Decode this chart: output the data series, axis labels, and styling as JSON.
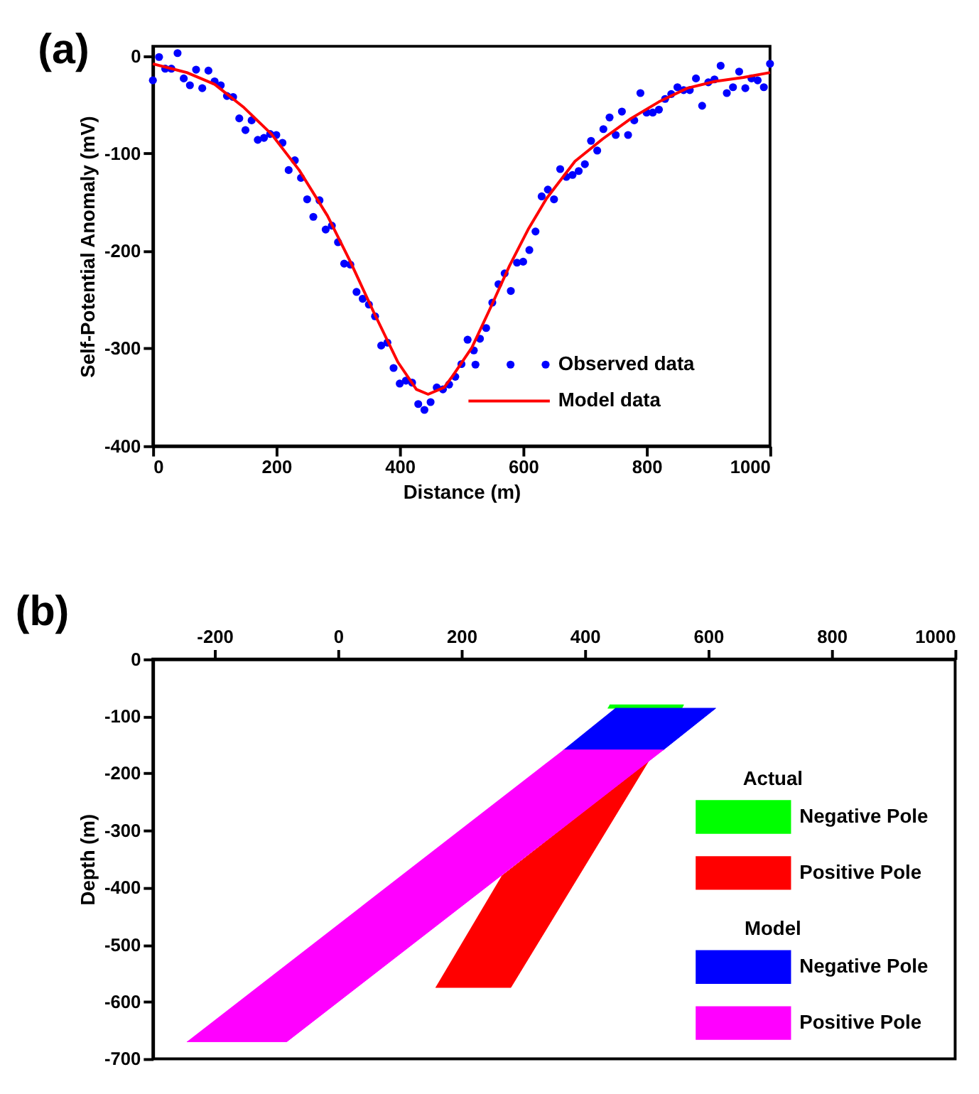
{
  "chart_data": [
    {
      "type": "scatter",
      "title": "(a)",
      "xlabel": "Distance (m)",
      "ylabel": "Self-Potential Anomaly (mV)",
      "xlim": [
        0,
        1000
      ],
      "xticks": [
        0,
        200,
        400,
        600,
        800,
        1000
      ],
      "ylim": [
        -400,
        10
      ],
      "yticks": [
        -400,
        -300,
        -200,
        -100,
        0
      ],
      "legend": "bottom right",
      "series": [
        {
          "name": "Observed data",
          "type": "scatter",
          "marker": "circle",
          "color": "#0000ff",
          "x": [
            0,
            10,
            20,
            30,
            40,
            50,
            60,
            70,
            80,
            90,
            100,
            110,
            120,
            130,
            140,
            150,
            160,
            170,
            180,
            190,
            200,
            210,
            220,
            230,
            240,
            250,
            260,
            270,
            280,
            290,
            300,
            310,
            320,
            330,
            340,
            350,
            360,
            370,
            380,
            390,
            400,
            410,
            420,
            430,
            440,
            450,
            460,
            470,
            480,
            490,
            500,
            510,
            520,
            530,
            540,
            550,
            560,
            570,
            580,
            590,
            600,
            610,
            620,
            630,
            640,
            650,
            660,
            670,
            680,
            690,
            700,
            710,
            720,
            730,
            740,
            750,
            760,
            770,
            780,
            790,
            800,
            810,
            820,
            830,
            840,
            850,
            860,
            870,
            880,
            890,
            900,
            910,
            920,
            930,
            940,
            950,
            960,
            970,
            980,
            990,
            1000
          ],
          "values": [
            -25,
            -1,
            -13,
            -13,
            3,
            -23,
            -30,
            -14,
            -33,
            -15,
            -26,
            -30,
            -41,
            -42,
            -64,
            -76,
            -66,
            -86,
            -84,
            -80,
            -81,
            -89,
            -117,
            -107,
            -125,
            -147,
            -165,
            -148,
            -178,
            -174,
            -191,
            -213,
            -214,
            -242,
            -249,
            -255,
            -267,
            -297,
            -294,
            -320,
            -336,
            -333,
            -335,
            -357,
            -363,
            -355,
            -340,
            -342,
            -337,
            -329,
            -316,
            -291,
            -302,
            -290,
            -279,
            -253,
            -234,
            -223,
            -241,
            -212,
            -211,
            -199,
            -180,
            -144,
            -137,
            -147,
            -116,
            -124,
            -122,
            -118,
            -111,
            -87,
            -97,
            -75,
            -63,
            -81,
            -57,
            -81,
            -66,
            -38,
            -58,
            -58,
            -55,
            -44,
            -39,
            -32,
            -35,
            -35,
            -23,
            -51,
            -27,
            -24,
            -10,
            -38,
            -32,
            -16,
            -33,
            -23,
            -25,
            -32,
            -8
          ]
        },
        {
          "name": "Model data",
          "type": "line",
          "marker": "none",
          "line_style": "solid",
          "color": "#ff0000",
          "x": [
            0,
            55,
            100,
            146,
            192,
            237,
            283,
            320,
            358,
            397,
            427,
            446,
            472,
            487,
            517,
            548,
            578,
            608,
            638,
            684,
            729,
            775,
            820,
            866,
            911,
            957,
            1000
          ],
          "values": [
            -8,
            -17,
            -29,
            -52,
            -80,
            -117,
            -164,
            -211,
            -263,
            -314,
            -342,
            -347,
            -340,
            -327,
            -299,
            -257,
            -215,
            -178,
            -146,
            -108,
            -85,
            -64,
            -47,
            -33,
            -26,
            -22,
            -17
          ]
        }
      ]
    },
    {
      "type": "area",
      "title": "(b)",
      "ylabel": "Depth (m)",
      "xlim": [
        -300,
        1000
      ],
      "xticks": [
        -200,
        0,
        200,
        400,
        600,
        800,
        1000
      ],
      "ylim": [
        -700,
        0
      ],
      "yticks": [
        0,
        -100,
        -200,
        -300,
        -400,
        -500,
        -600,
        -700
      ],
      "legend": "right",
      "annotations": [
        "Actual",
        "Model"
      ],
      "series": [
        {
          "name": "Negative Pole",
          "color": "#00ff00",
          "x": [
            440,
            560,
            557,
            437
          ],
          "values": [
            -80,
            -80,
            -86,
            -86
          ]
        },
        {
          "name": "Positive Pole",
          "color": "#ff0000",
          "x": [
            265,
            503,
            280,
            158
          ],
          "values": [
            -380,
            -179,
            -575,
            -575
          ]
        },
        {
          "name": "Negative Pole",
          "color": "#0000ff",
          "x": [
            449,
            612,
            527,
            365
          ],
          "values": [
            -86,
            -86,
            -159,
            -159
          ]
        },
        {
          "name": "Positive Pole",
          "color": "#ff00ff",
          "x": [
            365,
            527,
            -83,
            -245
          ],
          "values": [
            -159,
            -159,
            -670,
            -670
          ]
        }
      ]
    }
  ]
}
